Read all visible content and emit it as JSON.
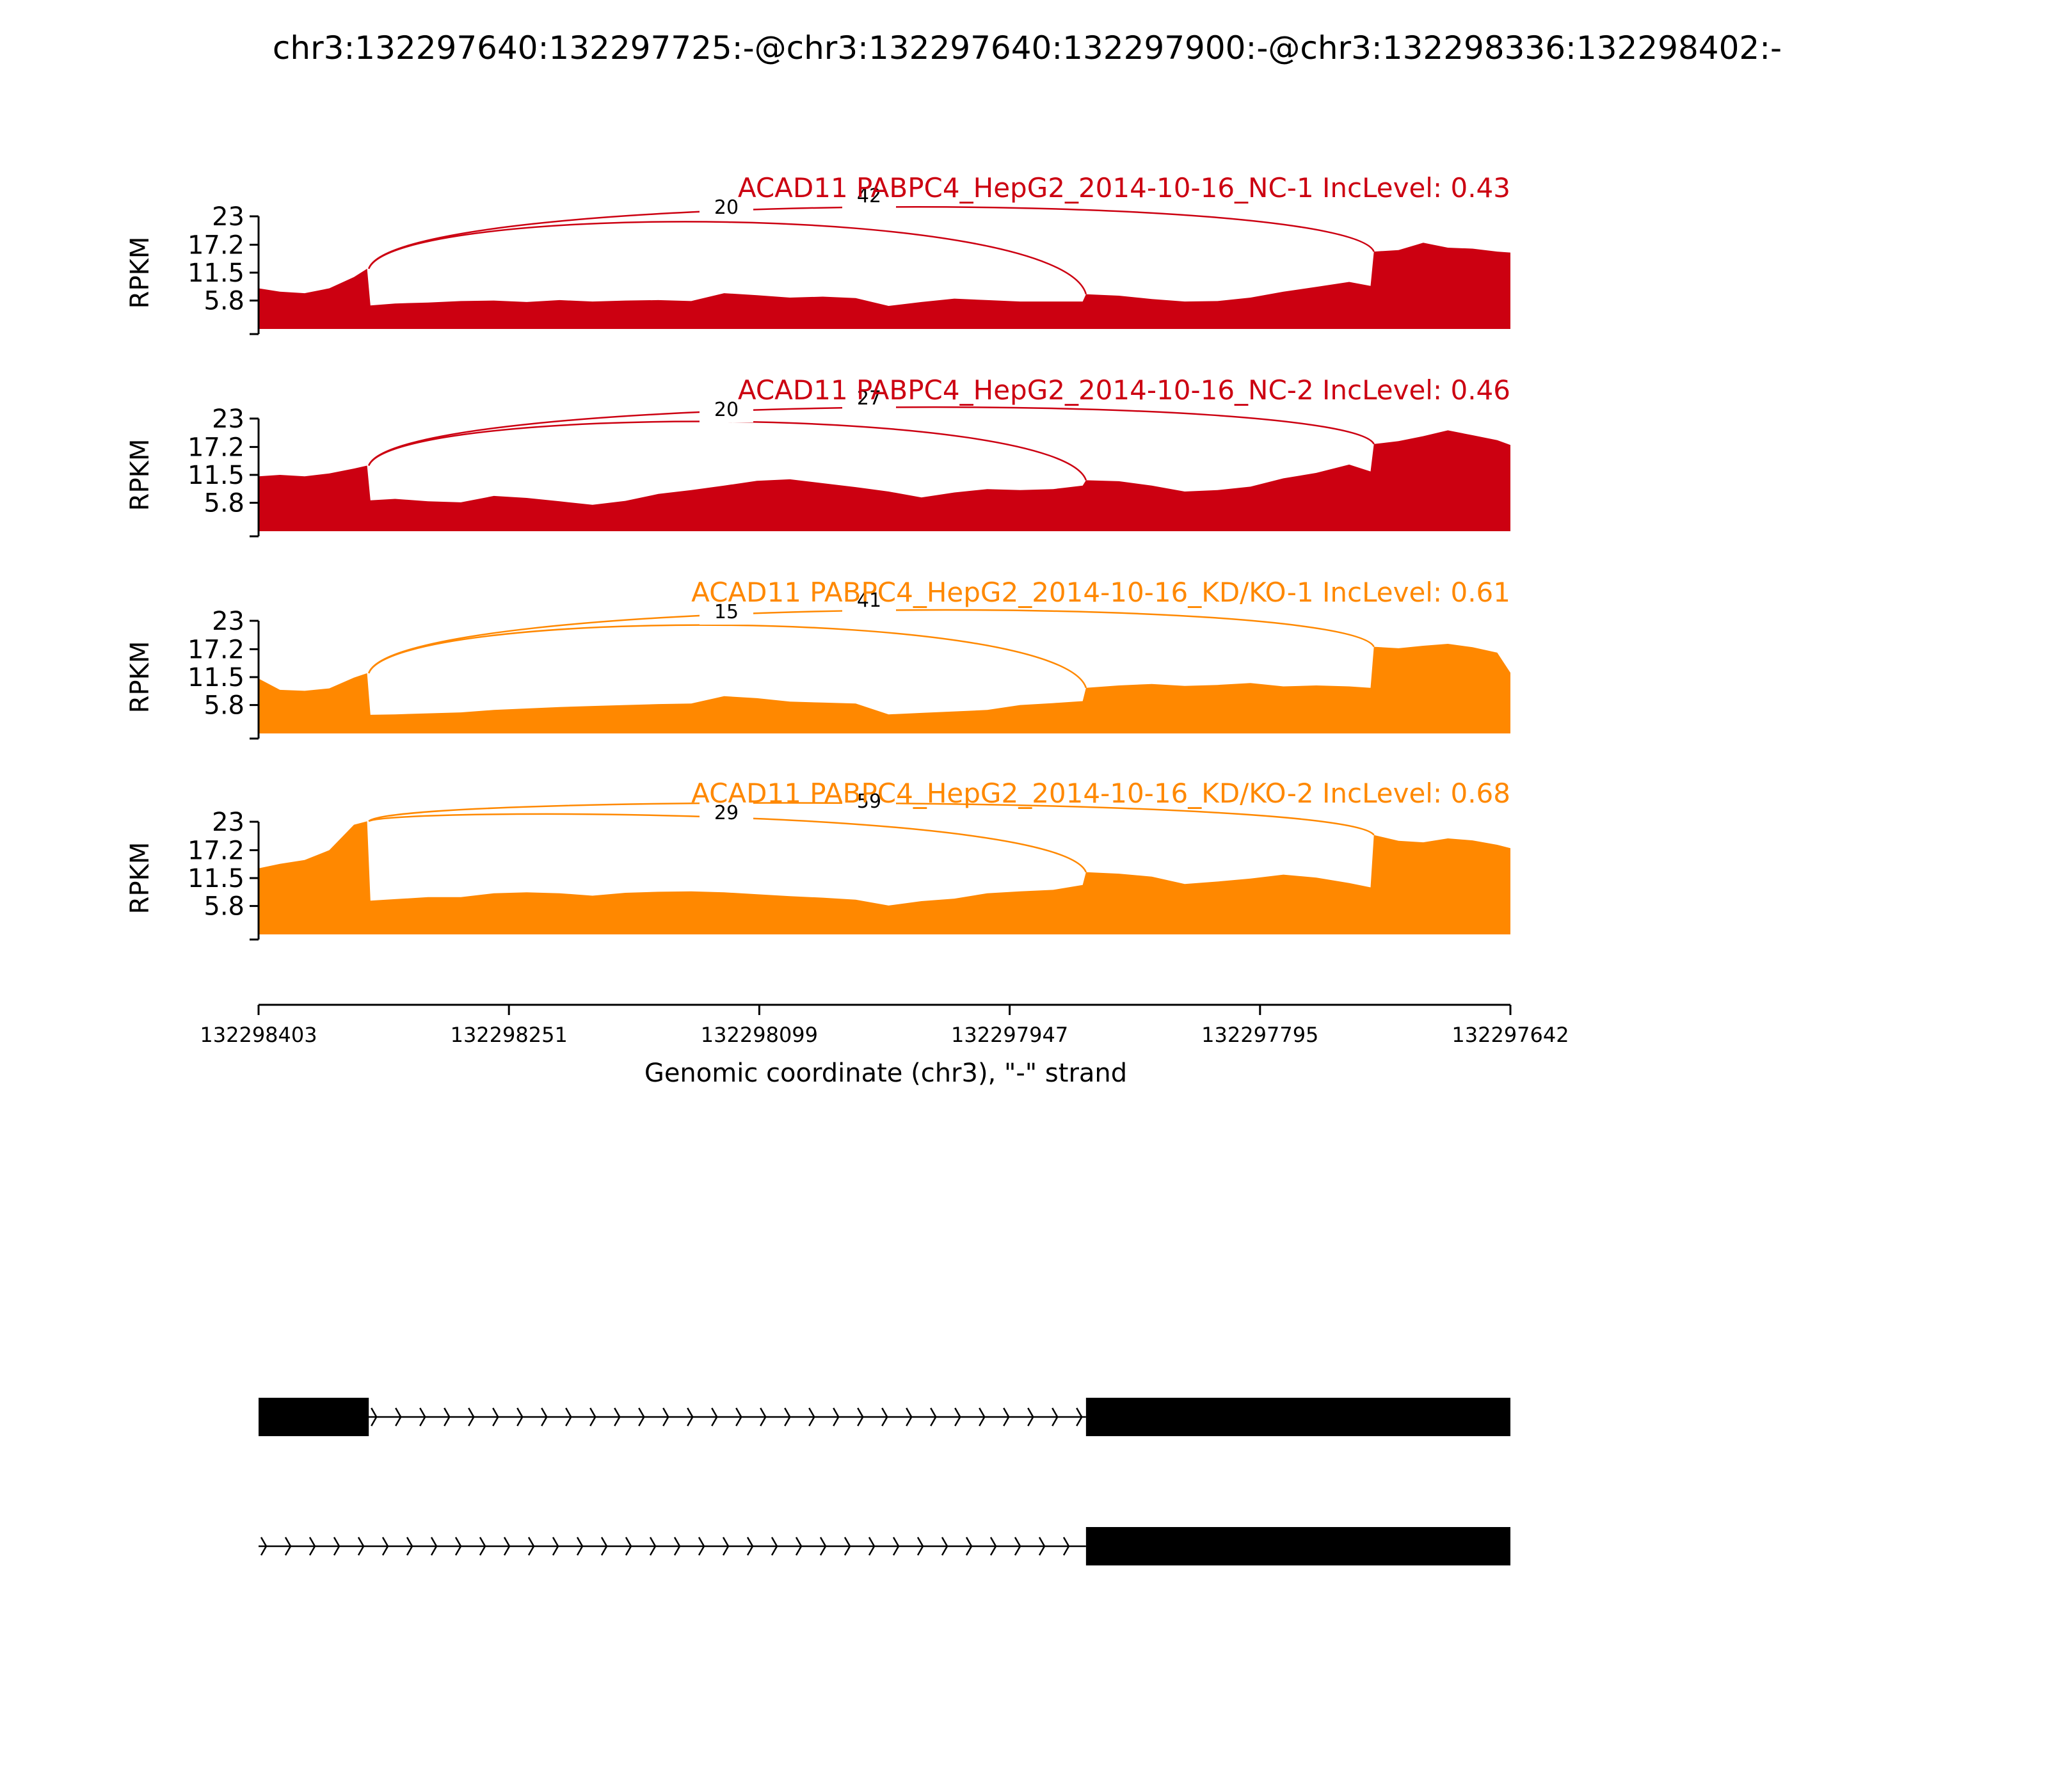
{
  "page_title": "chr3:132297640:132297725:-@chr3:132297640:132297900:-@chr3:132298336:132298402:-",
  "chart_data": {
    "type": "area",
    "title": "chr3:132297640:132297725:-@chr3:132297640:132297900:-@chr3:132298336:132298402:-",
    "xlabel": "Genomic coordinate (chr3), \"-\" strand",
    "ylabel": "RPKM",
    "x_reversed": true,
    "xlim": [
      132298403,
      132297642
    ],
    "xticks": [
      "132298403",
      "132298251",
      "132298099",
      "132297947",
      "132297795",
      "132297642"
    ],
    "ylim": [
      0,
      23
    ],
    "yticks": [
      "5.8",
      "11.5",
      "17.2",
      "23"
    ],
    "x": [
      132298403,
      132298390,
      132298375,
      132298360,
      132298345,
      132298337,
      132298335,
      132298320,
      132298300,
      132298280,
      132298260,
      132298240,
      132298220,
      132298200,
      132298180,
      132298160,
      132298140,
      132298120,
      132298100,
      132298080,
      132298060,
      132298040,
      132298020,
      132298000,
      132297980,
      132297960,
      132297940,
      132297920,
      132297902,
      132297900,
      132297880,
      132297860,
      132297840,
      132297820,
      132297800,
      132297780,
      132297760,
      132297740,
      132297727,
      132297725,
      132297710,
      132297695,
      132297680,
      132297665,
      132297650,
      132297642
    ],
    "tracks": [
      {
        "label": "ACAD11 PABPC4_HepG2_2014-10-16_NC-1 IncLevel: 0.43",
        "color": "#cc0011",
        "values": [
          8.3,
          7.6,
          7.3,
          8.3,
          10.6,
          12.3,
          4.8,
          5.2,
          5.4,
          5.7,
          5.8,
          5.5,
          5.9,
          5.6,
          5.8,
          5.9,
          5.7,
          7.3,
          6.9,
          6.4,
          6.6,
          6.3,
          4.7,
          5.5,
          6.2,
          5.9,
          5.6,
          5.6,
          5.6,
          7.1,
          6.8,
          6.1,
          5.6,
          5.7,
          6.4,
          7.6,
          8.6,
          9.6,
          8.8,
          15.8,
          16.1,
          17.6,
          16.6,
          16.4,
          15.8,
          15.6
        ],
        "junctions": [
          {
            "count": "42",
            "from": 132298336,
            "to": 132297725
          },
          {
            "count": "20",
            "from": 132298336,
            "to": 132297900
          }
        ]
      },
      {
        "label": "ACAD11 PABPC4_HepG2_2014-10-16_NC-2 IncLevel: 0.46",
        "color": "#cc0011",
        "values": [
          11.2,
          11.5,
          11.2,
          11.8,
          12.8,
          13.4,
          6.3,
          6.6,
          6.1,
          5.9,
          7.2,
          6.8,
          6.1,
          5.4,
          6.2,
          7.6,
          8.4,
          9.3,
          10.3,
          10.6,
          9.8,
          9.0,
          8.1,
          6.9,
          7.9,
          8.6,
          8.4,
          8.6,
          9.3,
          10.4,
          10.2,
          9.3,
          8.1,
          8.4,
          9.1,
          10.8,
          11.9,
          13.6,
          12.2,
          17.8,
          18.4,
          19.4,
          20.6,
          19.6,
          18.6,
          17.6
        ],
        "junctions": [
          {
            "count": "27",
            "from": 132298336,
            "to": 132297725
          },
          {
            "count": "20",
            "from": 132298336,
            "to": 132297900
          }
        ]
      },
      {
        "label": "ACAD11 PABPC4_HepG2_2014-10-16_KD/KO-1 IncLevel: 0.61",
        "color": "#ff8800",
        "values": [
          11.2,
          8.9,
          8.7,
          9.2,
          11.4,
          12.3,
          3.8,
          3.9,
          4.1,
          4.3,
          4.8,
          5.1,
          5.4,
          5.6,
          5.8,
          6.0,
          6.1,
          7.6,
          7.2,
          6.5,
          6.3,
          6.1,
          3.9,
          4.2,
          4.5,
          4.8,
          5.8,
          6.2,
          6.6,
          9.3,
          9.8,
          10.1,
          9.7,
          9.9,
          10.3,
          9.6,
          9.8,
          9.6,
          9.3,
          17.7,
          17.4,
          17.9,
          18.3,
          17.6,
          16.5,
          12.4
        ],
        "junctions": [
          {
            "count": "41",
            "from": 132298336,
            "to": 132297725
          },
          {
            "count": "15",
            "from": 132298336,
            "to": 132297900
          }
        ]
      },
      {
        "label": "ACAD11 PABPC4_HepG2_2014-10-16_KD/KO-2 IncLevel: 0.68",
        "color": "#ff8800",
        "values": [
          13.5,
          14.4,
          15.2,
          17.2,
          22.4,
          23.1,
          6.9,
          7.2,
          7.6,
          7.6,
          8.4,
          8.6,
          8.4,
          7.9,
          8.5,
          8.7,
          8.8,
          8.6,
          8.2,
          7.8,
          7.5,
          7.1,
          5.9,
          6.8,
          7.3,
          8.4,
          8.8,
          9.1,
          10.1,
          12.7,
          12.4,
          11.8,
          10.3,
          10.8,
          11.4,
          12.2,
          11.6,
          10.5,
          9.6,
          20.3,
          19.1,
          18.8,
          19.6,
          19.2,
          18.3,
          17.6
        ],
        "junctions": [
          {
            "count": "59",
            "from": 132298336,
            "to": 132297725
          },
          {
            "count": "29",
            "from": 132298336,
            "to": 132297900
          }
        ]
      }
    ],
    "transcripts": [
      {
        "exons": [
          [
            132298403,
            132298336
          ],
          [
            132297900,
            132297642
          ]
        ],
        "line_from": 132298403
      },
      {
        "exons": [
          [
            132297900,
            132297642
          ]
        ],
        "line_from": 132298403
      }
    ]
  }
}
